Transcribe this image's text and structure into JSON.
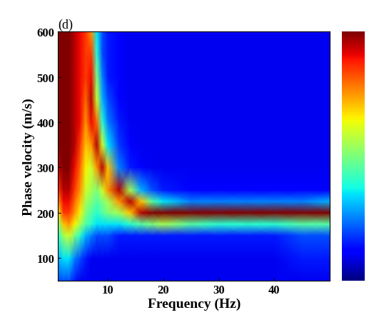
{
  "chart_data": {
    "type": "heatmap",
    "title": "(d)",
    "x_label": "Frequency (Hz)",
    "y_label": "Phase velocity (m/s)",
    "x": [
      1,
      2,
      3,
      4,
      5,
      6,
      7,
      8,
      9,
      10,
      12,
      14,
      16,
      18,
      20,
      25,
      30,
      35,
      40,
      45,
      50
    ],
    "y": [
      50,
      100,
      150,
      175,
      200,
      225,
      250,
      300,
      350,
      400,
      450,
      500,
      550,
      600
    ],
    "values": [
      [
        0.2,
        0.2,
        0.2,
        0.15,
        0.1,
        0.1,
        0.1,
        0.1,
        0.1,
        0.1,
        0.1,
        0.1,
        0.1,
        0.1,
        0.1,
        0.1,
        0.1,
        0.1,
        0.1,
        0.1,
        0.1
      ],
      [
        0.3,
        0.35,
        0.35,
        0.25,
        0.2,
        0.15,
        0.1,
        0.1,
        0.1,
        0.1,
        0.1,
        0.1,
        0.1,
        0.1,
        0.1,
        0.1,
        0.1,
        0.1,
        0.1,
        0.15,
        0.15
      ],
      [
        0.4,
        0.55,
        0.6,
        0.5,
        0.4,
        0.3,
        0.25,
        0.2,
        0.2,
        0.2,
        0.15,
        0.15,
        0.15,
        0.15,
        0.15,
        0.15,
        0.15,
        0.15,
        0.15,
        0.2,
        0.2
      ],
      [
        0.5,
        0.7,
        0.75,
        0.65,
        0.55,
        0.45,
        0.4,
        0.35,
        0.35,
        0.35,
        0.35,
        0.4,
        0.45,
        0.5,
        0.55,
        0.45,
        0.4,
        0.4,
        0.4,
        0.45,
        0.45
      ],
      [
        0.65,
        0.85,
        0.85,
        0.75,
        0.65,
        0.5,
        0.45,
        0.4,
        0.45,
        0.5,
        0.55,
        0.7,
        0.95,
        1.0,
        1.0,
        1.0,
        1.0,
        1.0,
        1.0,
        1.0,
        1.0
      ],
      [
        0.75,
        0.9,
        0.9,
        0.8,
        0.7,
        0.55,
        0.5,
        0.45,
        0.5,
        0.55,
        0.75,
        0.95,
        0.7,
        0.45,
        0.35,
        0.25,
        0.25,
        0.25,
        0.25,
        0.25,
        0.3
      ],
      [
        0.85,
        0.95,
        0.95,
        0.85,
        0.75,
        0.6,
        0.55,
        0.5,
        0.6,
        0.75,
        0.95,
        0.55,
        0.3,
        0.2,
        0.15,
        0.12,
        0.12,
        0.12,
        0.12,
        0.12,
        0.12
      ],
      [
        0.95,
        1.0,
        1.0,
        0.9,
        0.8,
        0.65,
        0.6,
        0.75,
        0.95,
        0.7,
        0.25,
        0.15,
        0.12,
        0.1,
        0.1,
        0.1,
        0.1,
        0.1,
        0.1,
        0.1,
        0.1
      ],
      [
        1.0,
        1.0,
        1.0,
        0.95,
        0.85,
        0.7,
        0.75,
        0.95,
        0.6,
        0.35,
        0.18,
        0.12,
        0.1,
        0.1,
        0.1,
        0.1,
        0.1,
        0.1,
        0.1,
        0.1,
        0.1
      ],
      [
        1.0,
        1.0,
        1.0,
        0.95,
        0.9,
        0.75,
        0.9,
        0.8,
        0.4,
        0.25,
        0.15,
        0.1,
        0.1,
        0.1,
        0.1,
        0.1,
        0.1,
        0.1,
        0.1,
        0.1,
        0.1
      ],
      [
        1.0,
        1.0,
        1.0,
        0.95,
        0.9,
        0.8,
        0.95,
        0.6,
        0.3,
        0.2,
        0.12,
        0.1,
        0.1,
        0.1,
        0.1,
        0.1,
        0.1,
        0.1,
        0.1,
        0.1,
        0.1
      ],
      [
        1.0,
        1.0,
        1.0,
        0.95,
        0.9,
        0.85,
        0.9,
        0.5,
        0.25,
        0.15,
        0.12,
        0.1,
        0.1,
        0.1,
        0.1,
        0.1,
        0.1,
        0.1,
        0.1,
        0.1,
        0.1
      ],
      [
        1.0,
        1.0,
        1.0,
        0.95,
        0.9,
        0.85,
        0.85,
        0.4,
        0.2,
        0.15,
        0.12,
        0.1,
        0.1,
        0.1,
        0.1,
        0.1,
        0.1,
        0.1,
        0.1,
        0.1,
        0.1
      ],
      [
        1.0,
        1.0,
        1.0,
        0.95,
        0.9,
        0.85,
        0.75,
        0.35,
        0.2,
        0.15,
        0.12,
        0.1,
        0.1,
        0.1,
        0.1,
        0.1,
        0.1,
        0.1,
        0.1,
        0.1,
        0.1
      ]
    ],
    "xlim": [
      1,
      50
    ],
    "xticks": [
      10,
      20,
      30,
      40
    ],
    "ylim": [
      50,
      600
    ],
    "yticks": [
      100,
      200,
      300,
      400,
      500,
      600
    ],
    "colorbar_range": [
      0,
      1
    ],
    "colorbar_ticks": []
  }
}
